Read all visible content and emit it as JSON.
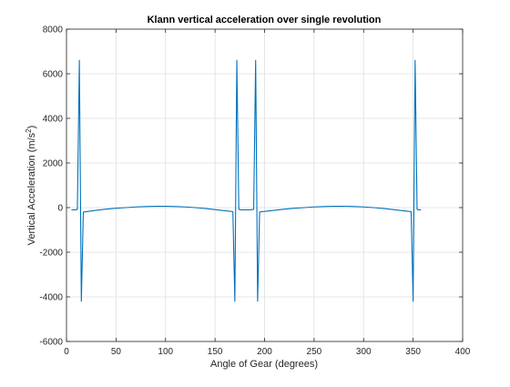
{
  "colors": {
    "series": "#0072bd",
    "grid": "#dfdfdf",
    "axis": "#262626",
    "background": "#ffffff"
  },
  "chart_data": {
    "type": "line",
    "title": "Klann vertical acceleration over single revolution",
    "xlabel": "Angle of Gear (degrees)",
    "ylabel": "Vertical Acceleration (m/s",
    "ylabel_superscript": "2",
    "ylabel_suffix": ")",
    "xlim": [
      0,
      400
    ],
    "ylim": [
      -6000,
      8000
    ],
    "xticks": [
      0,
      50,
      100,
      150,
      200,
      250,
      300,
      350,
      400
    ],
    "yticks": [
      -6000,
      -4000,
      -2000,
      0,
      2000,
      4000,
      6000,
      8000
    ],
    "xtick_labels": [
      "0",
      "50",
      "100",
      "150",
      "200",
      "250",
      "300",
      "350",
      "400"
    ],
    "ytick_labels": [
      "-6000",
      "-4000",
      "-2000",
      "0",
      "2000",
      "4000",
      "6000",
      "8000"
    ],
    "grid": true,
    "series": [
      {
        "x": [
          5,
          9,
          11,
          13,
          15,
          17,
          20,
          30,
          40,
          50,
          60,
          70,
          80,
          90,
          100,
          110,
          120,
          130,
          140,
          150,
          160,
          168,
          170,
          172,
          174,
          176,
          180,
          185,
          189,
          191,
          193,
          195,
          197,
          200,
          210,
          220,
          230,
          240,
          250,
          260,
          270,
          280,
          290,
          300,
          310,
          320,
          330,
          340,
          348,
          350,
          352,
          354,
          356,
          358
        ],
        "y": [
          -100,
          -100,
          -80,
          6600,
          -4200,
          -200,
          -180,
          -120,
          -70,
          -30,
          0,
          30,
          50,
          60,
          60,
          50,
          30,
          0,
          -40,
          -90,
          -140,
          -180,
          -4200,
          6600,
          -80,
          -100,
          -100,
          -100,
          -80,
          6600,
          -4200,
          -200,
          -180,
          -170,
          -120,
          -70,
          -30,
          0,
          30,
          50,
          60,
          60,
          50,
          30,
          0,
          -40,
          -90,
          -140,
          -180,
          -4200,
          6600,
          -80,
          -100,
          -100
        ]
      }
    ]
  }
}
